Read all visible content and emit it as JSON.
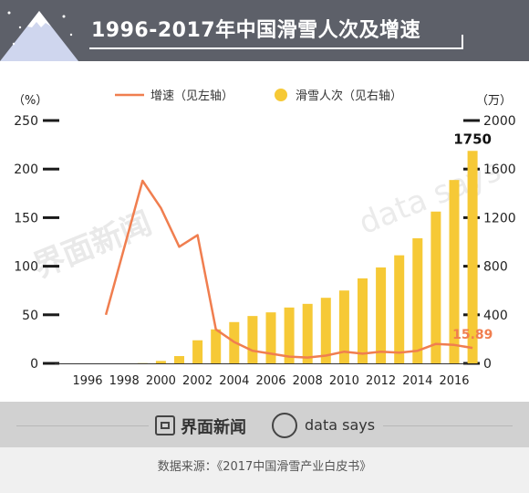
{
  "header": {
    "title": "1996-2017年中国滑雪人次及增速"
  },
  "colors": {
    "bar": "#f6c936",
    "line": "#f07e4f",
    "header_bg": "#5d6069"
  },
  "chart_data": {
    "type": "bar",
    "categories": [
      "1996",
      "1997",
      "1998",
      "1999",
      "2000",
      "2001",
      "2002",
      "2003",
      "2004",
      "2005",
      "2006",
      "2007",
      "2008",
      "2009",
      "2010",
      "2011",
      "2012",
      "2013",
      "2014",
      "2015",
      "2016",
      "2017"
    ],
    "x_tick_labels": [
      "1996",
      "1998",
      "2000",
      "2002",
      "2004",
      "2006",
      "2008",
      "2010",
      "2012",
      "2014",
      "2016"
    ],
    "series": [
      {
        "name": "滑雪人次（见右轴）",
        "type": "bar",
        "axis": "right",
        "values": [
          0,
          0,
          0,
          2,
          20,
          60,
          190,
          280,
          340,
          390,
          420,
          460,
          490,
          540,
          600,
          700,
          790,
          890,
          1030,
          1250,
          1510,
          1750
        ]
      },
      {
        "name": "增速（见左轴）",
        "type": "line",
        "axis": "left",
        "values": [
          null,
          50,
          null,
          188,
          160,
          120,
          132,
          35,
          22,
          13,
          10,
          7,
          6,
          8,
          12,
          10,
          12,
          11,
          13,
          20,
          19,
          15.89
        ]
      }
    ],
    "left_axis": {
      "unit": "（%）",
      "ticks": [
        "250",
        "200",
        "150",
        "100",
        "50",
        "0"
      ],
      "range": [
        0,
        250
      ]
    },
    "right_axis": {
      "unit": "（万）",
      "ticks": [
        "2000",
        "1600",
        "1200",
        "800",
        "400",
        "0"
      ],
      "range": [
        0,
        2000
      ]
    },
    "annotations": {
      "last_bar": "1750",
      "last_line": "15.89"
    },
    "legend_placement": "top"
  },
  "footer": {
    "brand_jiemian": "界面新闻",
    "brand_datasays": "data says",
    "watermark_jiemian": "界面新闻",
    "watermark_datasays": "data says"
  },
  "source": "数据来源：《2017中国滑雪产业白皮书》"
}
